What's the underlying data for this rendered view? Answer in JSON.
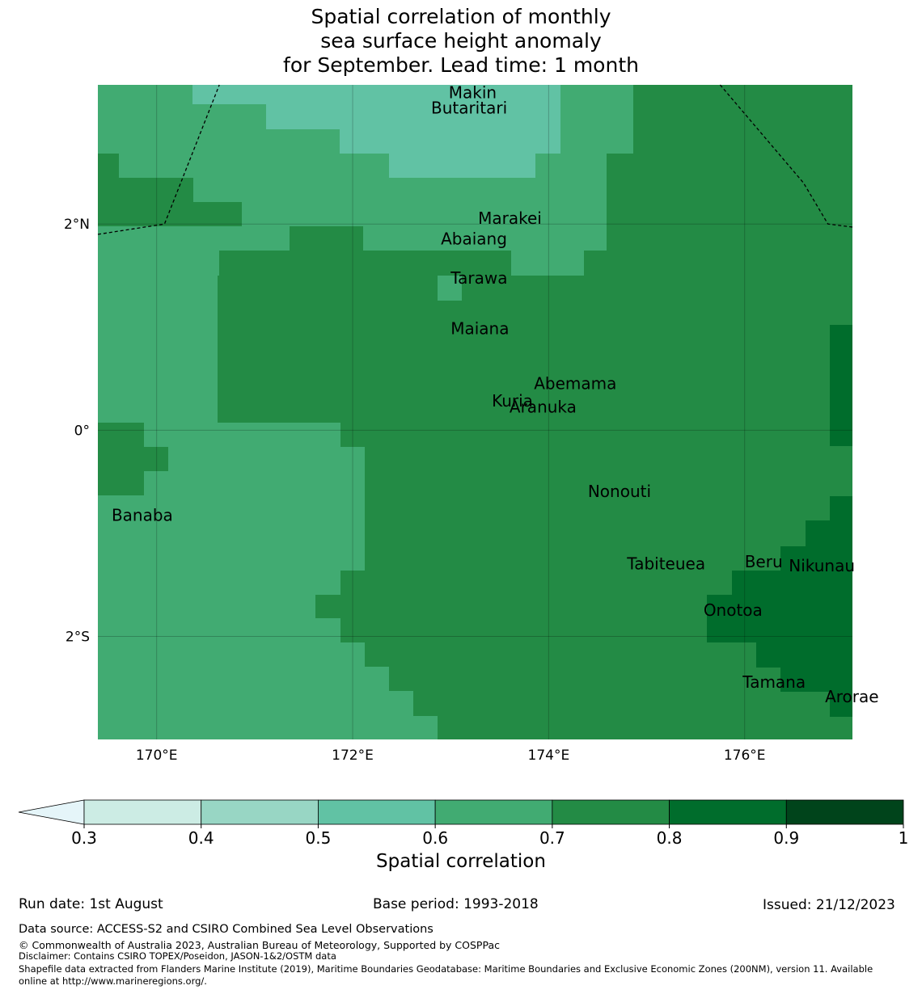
{
  "title_lines": [
    "Spatial correlation of monthly",
    "sea surface height anomaly",
    "for September. Lead time: 1 month"
  ],
  "axes": {
    "lon_range": [
      169.4,
      177.1
    ],
    "lat_range": [
      -3.0,
      3.35
    ],
    "x_ticks": [
      {
        "value": 170,
        "label": "170°E"
      },
      {
        "value": 172,
        "label": "172°E"
      },
      {
        "value": 174,
        "label": "174°E"
      },
      {
        "value": 176,
        "label": "176°E"
      }
    ],
    "y_ticks": [
      {
        "value": 2,
        "label": "2°N"
      },
      {
        "value": 0,
        "label": "0°"
      },
      {
        "value": -2,
        "label": "2°S"
      }
    ]
  },
  "colors": {
    "c0405": "#98d6c4",
    "c0506": "#61c2a4",
    "c0607": "#41ab72",
    "c0708": "#238b45",
    "c0809": "#006d2c",
    "c0910": "#00441b",
    "c0304": "#ccece4",
    "below": "#e5f5f9"
  },
  "islands": [
    {
      "name": "Makin",
      "label": "Makin",
      "lon": 172.98,
      "lat": 3.22
    },
    {
      "name": "Butaritari",
      "label": "Butaritari",
      "lon": 172.8,
      "lat": 3.07
    },
    {
      "name": "Marakei",
      "label": "Marakei",
      "lon": 173.28,
      "lat": 2.0
    },
    {
      "name": "Abaiang",
      "label": "Abaiang",
      "lon": 172.9,
      "lat": 1.8
    },
    {
      "name": "Tarawa",
      "label": "Tarawa",
      "lon": 173.0,
      "lat": 1.42
    },
    {
      "name": "Maiana",
      "label": "Maiana",
      "lon": 173.0,
      "lat": 0.93
    },
    {
      "name": "Abemama",
      "label": "Abemama",
      "lon": 173.85,
      "lat": 0.4
    },
    {
      "name": "Kuria",
      "label": "Kuria",
      "lon": 173.42,
      "lat": 0.23
    },
    {
      "name": "Aranuka",
      "label": "Aranuka",
      "lon": 173.6,
      "lat": 0.17
    },
    {
      "name": "Nonouti",
      "label": "Nonouti",
      "lon": 174.4,
      "lat": -0.65
    },
    {
      "name": "Banaba",
      "label": "Banaba",
      "lon": 169.54,
      "lat": -0.88
    },
    {
      "name": "Tabiteuea",
      "label": "Tabiteuea",
      "lon": 174.8,
      "lat": -1.35
    },
    {
      "name": "Beru",
      "label": "Beru",
      "lon": 176.0,
      "lat": -1.33
    },
    {
      "name": "Nikunau",
      "label": "Nikunau",
      "lon": 176.45,
      "lat": -1.37
    },
    {
      "name": "Onotoa",
      "label": "Onotoa",
      "lon": 175.58,
      "lat": -1.8
    },
    {
      "name": "Tamana",
      "label": "Tamana",
      "lon": 175.98,
      "lat": -2.5
    },
    {
      "name": "Arorae",
      "label": "Arorae",
      "lon": 176.82,
      "lat": -2.64
    }
  ],
  "eez_boundaries": [
    {
      "name": "boundary-west",
      "points": [
        [
          169.4,
          1.9
        ],
        [
          170.08,
          2.0
        ],
        [
          170.64,
          3.35
        ]
      ]
    },
    {
      "name": "boundary-east",
      "points": [
        [
          175.75,
          3.35
        ],
        [
          176.6,
          2.4
        ],
        [
          176.85,
          2.0
        ],
        [
          177.1,
          1.97
        ]
      ]
    }
  ],
  "colorbar": {
    "ticks": [
      "0.3",
      "0.4",
      "0.5",
      "0.6",
      "0.7",
      "0.8",
      "0.9",
      "1"
    ],
    "label": "Spatial correlation",
    "extend": "min"
  },
  "footer": {
    "run_date": "Run date: 1st August",
    "base_period": "Base period: 1993-2018",
    "issued": "Issued: 21/12/2023",
    "data_source": "Data source: ACCESS-S2 and CSIRO Combined Sea Level Observations",
    "copyright": "© Commonwealth of Australia 2023, Australian Bureau of Meteorology, Supported by COSPPac",
    "disclaimer": "Disclaimer: Contains CSIRO TOPEX/Poseidon, JASON-1&2/OSTM data",
    "shapefile_1": "Shapefile data extracted from Flanders Marine Institute (2019), Maritime Boundaries Geodatabase: Maritime Boundaries and Exclusive Economic Zones (200NM), version 11. Available",
    "shapefile_2": "online at http://www.marineregions.org/."
  }
}
